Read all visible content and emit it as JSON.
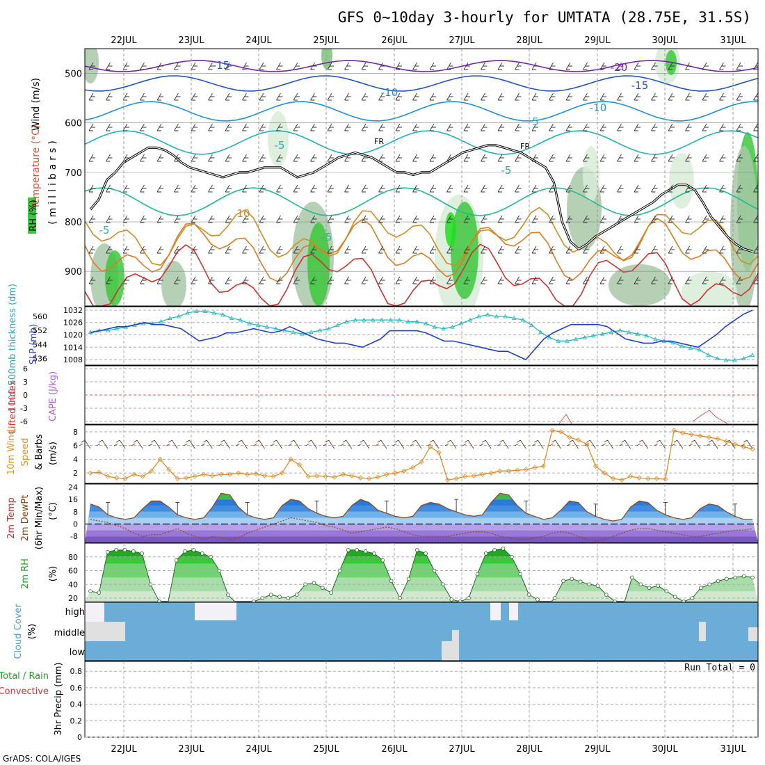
{
  "title": "GFS 0~10day 3-hourly for UMTATA (28.75E, 31.5S)",
  "footer": "GrADS: COLA/IGES",
  "dates": [
    "22JUL",
    "23JUL",
    "24JUL",
    "25JUL",
    "26JUL",
    "27JUL",
    "28JUL",
    "29JUL",
    "30JUL",
    "31JUL"
  ],
  "colors": {
    "rh_green": "#3cc83c",
    "light_green": "#d8ecd8",
    "grid": "#aaaaaa",
    "cloud": "#6badd6",
    "temp": "#2ca02c",
    "dewpt": "#8b4513"
  },
  "chart_data": [
    {
      "type": "heatmap",
      "name": "upper-air",
      "left_labels": {
        "wind": "Wind (m/s)",
        "temp": "Temperature (°C)",
        "rh": "RH (%)"
      },
      "ylabel": "(millibars)",
      "y_ticks": [
        500,
        600,
        700,
        800,
        900
      ],
      "ylim": [
        970,
        450
      ],
      "isotherm_labels": [
        "-20",
        "-15",
        "-15",
        "-10",
        "-10",
        "-5",
        "-5",
        "-5",
        "-5",
        "5",
        "10",
        "FR",
        "FR"
      ],
      "freezing_level_mb": [
        775,
        755,
        715,
        700,
        680,
        670,
        660,
        650,
        650,
        655,
        665,
        680,
        690,
        695,
        700,
        705,
        710,
        705,
        700,
        700,
        695,
        690,
        690,
        690,
        700,
        710,
        705,
        700,
        690,
        680,
        670,
        665,
        660,
        665,
        670,
        680,
        690,
        700,
        700,
        705,
        700,
        700,
        690,
        680,
        670,
        660,
        655,
        650,
        645,
        645,
        650,
        655,
        660,
        670,
        680,
        690,
        720,
        800,
        840,
        855,
        845,
        830,
        820,
        810,
        800,
        790,
        780,
        770,
        760,
        745,
        735,
        725,
        725,
        735,
        760,
        790,
        810,
        830,
        845,
        855,
        860
      ]
    },
    {
      "type": "line",
      "name": "thickness-slp",
      "left_labels": {
        "thickness": "1000-500mb thickness (dm)",
        "slp": "SLP (mb)"
      },
      "thickness_ticks": [
        536,
        544,
        552,
        560
      ],
      "slp_ticks": [
        1008,
        1014,
        1020,
        1026,
        1032
      ],
      "series": [
        {
          "name": "thickness",
          "values": [
            551,
            552,
            552,
            553,
            554,
            555,
            556,
            556,
            557,
            559,
            560,
            562,
            563,
            563,
            562,
            561,
            559,
            558,
            556,
            555,
            554,
            553,
            552,
            551,
            550,
            551,
            552,
            553,
            555,
            557,
            558,
            558,
            558,
            558,
            558,
            558,
            557,
            557,
            556,
            554,
            553,
            554,
            556,
            558,
            560,
            561,
            560,
            560,
            559,
            558,
            555,
            551,
            548,
            546,
            546,
            547,
            548,
            549,
            550,
            551,
            552,
            551,
            550,
            549,
            547,
            546,
            545,
            543,
            542,
            541,
            538,
            536,
            535,
            535,
            536,
            538
          ]
        },
        {
          "name": "SLP",
          "values": [
            1021,
            1022,
            1023,
            1024,
            1024,
            1025,
            1026,
            1025,
            1025,
            1024,
            1023,
            1020,
            1017,
            1018,
            1019,
            1021,
            1021,
            1022,
            1023,
            1022,
            1021,
            1022,
            1024,
            1022,
            1020,
            1018,
            1017,
            1016,
            1016,
            1015,
            1014,
            1016,
            1018,
            1022,
            1022,
            1022,
            1022,
            1021,
            1019,
            1017,
            1017,
            1016,
            1015,
            1014,
            1013,
            1012,
            1012,
            1010,
            1008,
            1013,
            1018,
            1021,
            1023,
            1025,
            1025,
            1025,
            1025,
            1024,
            1021,
            1018,
            1017,
            1016,
            1016,
            1017,
            1017,
            1016,
            1015,
            1014,
            1017,
            1020,
            1024,
            1027,
            1030,
            1032
          ]
        }
      ]
    },
    {
      "type": "line",
      "name": "cape-li",
      "left_labels": {
        "li": "Lifted Index",
        "cape": "CAPE (J/kg)"
      },
      "y_ticks": [
        "6",
        "3",
        "0",
        "-3",
        "-6"
      ],
      "series": [
        {
          "name": "LI",
          "values": []
        }
      ]
    },
    {
      "type": "line",
      "name": "wind10m",
      "left_labels": {
        "wind": "10m Wind",
        "speed": "Speed",
        "barbs": "& Barbs",
        "unit": "(m/s)"
      },
      "y_ticks": [
        2,
        4,
        6,
        8
      ],
      "ylim": [
        0.5,
        9
      ],
      "series": [
        {
          "name": "speed",
          "values": [
            2.0,
            2.1,
            1.5,
            1.3,
            1.2,
            1.8,
            1.5,
            2.3,
            4.0,
            2.5,
            1.2,
            1.3,
            1.5,
            1.8,
            1.6,
            1.8,
            1.8,
            2.0,
            1.8,
            1.9,
            1.6,
            1.5,
            2.0,
            4.0,
            3.2,
            1.5,
            1.6,
            1.5,
            1.4,
            1.8,
            1.6,
            1.3,
            1.2,
            1.4,
            1.8,
            2.0,
            2.3,
            2.8,
            3.6,
            5.8,
            5.0,
            1.0,
            1.2,
            1.5,
            1.6,
            1.8,
            2.0,
            2.3,
            2.3,
            2.4,
            2.5,
            2.8,
            3.0,
            8.2,
            8.0,
            7.2,
            6.8,
            6.2,
            3.0,
            2.0,
            1.2,
            1.0,
            1.5,
            1.3,
            1.2,
            1.2,
            1.1,
            8.2,
            7.8,
            7.6,
            7.4,
            7.2,
            7.0,
            6.6,
            6.2,
            5.8,
            5.5
          ]
        }
      ]
    },
    {
      "type": "area",
      "name": "temperature-2m",
      "left_labels": {
        "temp": "2m Temp",
        "dewpt": "2m DewPt",
        "minmax": "(6hr Min/Max)",
        "unit": "(°C)"
      },
      "y_ticks": [
        -8,
        0,
        8,
        16,
        24
      ],
      "ylim": [
        -12,
        26
      ],
      "series": [
        {
          "name": "2m Temp",
          "values": [
            13,
            11,
            6,
            4,
            3,
            4,
            10,
            15,
            15,
            11,
            6,
            4,
            3,
            4,
            11,
            20,
            19,
            11,
            6,
            4,
            3,
            4,
            12,
            16,
            15,
            10,
            7,
            5,
            4,
            5,
            12,
            16,
            14,
            9,
            7,
            5,
            4,
            5,
            12,
            14,
            13,
            10,
            8,
            6,
            5,
            6,
            14,
            20,
            19,
            12,
            7,
            5,
            3,
            4,
            9,
            15,
            14,
            8,
            5,
            3,
            2,
            3,
            11,
            15,
            14,
            9,
            6,
            4,
            3,
            4,
            10,
            13,
            12,
            8,
            5,
            3,
            3
          ]
        },
        {
          "name": "2m DewPt",
          "values": [
            3,
            2,
            1,
            -1,
            -3,
            -6,
            -8,
            -7,
            -7,
            -5,
            -3,
            -6,
            -8,
            -10,
            -8,
            -9,
            -10,
            -9,
            -6,
            -4,
            -2,
            0,
            2,
            4,
            3,
            2,
            1,
            -1,
            -2,
            -4,
            -6,
            -5,
            -4,
            -3,
            -2,
            -3,
            -5,
            -7,
            -8,
            -8,
            -8,
            -8,
            -7,
            -6,
            -5,
            -5,
            -6,
            -8,
            -9,
            -10,
            -10,
            -9,
            -8,
            -6,
            -5,
            -6,
            -8,
            -10,
            -11,
            -10,
            -8,
            -6,
            -4,
            -3,
            -3,
            -4,
            -5,
            -6,
            -7,
            -8,
            -8,
            -7,
            -6,
            -5,
            -4,
            -4,
            -3
          ]
        }
      ]
    },
    {
      "type": "area",
      "name": "rh-2m",
      "left_labels": {
        "rh": "2m RH",
        "unit": "(%)"
      },
      "y_ticks": [
        20,
        40,
        60,
        80
      ],
      "ylim": [
        15,
        100
      ],
      "series": [
        {
          "name": "2m RH",
          "values": [
            30,
            28,
            87,
            90,
            90,
            88,
            85,
            40,
            15,
            12,
            75,
            88,
            90,
            85,
            80,
            60,
            25,
            12,
            8,
            15,
            20,
            25,
            22,
            20,
            25,
            40,
            42,
            35,
            28,
            60,
            90,
            90,
            88,
            85,
            75,
            45,
            20,
            48,
            90,
            85,
            60,
            40,
            18,
            15,
            20,
            55,
            85,
            90,
            92,
            80,
            55,
            25,
            18,
            8,
            20,
            45,
            48,
            44,
            40,
            38,
            25,
            15,
            10,
            50,
            40,
            35,
            38,
            30,
            22,
            15,
            20,
            35,
            40,
            45,
            48,
            50,
            52,
            50
          ]
        }
      ]
    },
    {
      "type": "bar",
      "name": "cloud-cover",
      "left_labels": {
        "title": "Cloud Cover",
        "unit": "(%)"
      },
      "levels": [
        "high",
        "middle",
        "low"
      ]
    },
    {
      "type": "bar",
      "name": "precip-3hr",
      "left_labels": {
        "title": "3hr Precip (mm)",
        "total": "Total / Rain",
        "conv": "Convective"
      },
      "y_ticks": [
        0,
        0.2,
        0.4,
        0.6,
        0.8
      ],
      "run_total": "Run Total = 0",
      "values": []
    }
  ]
}
